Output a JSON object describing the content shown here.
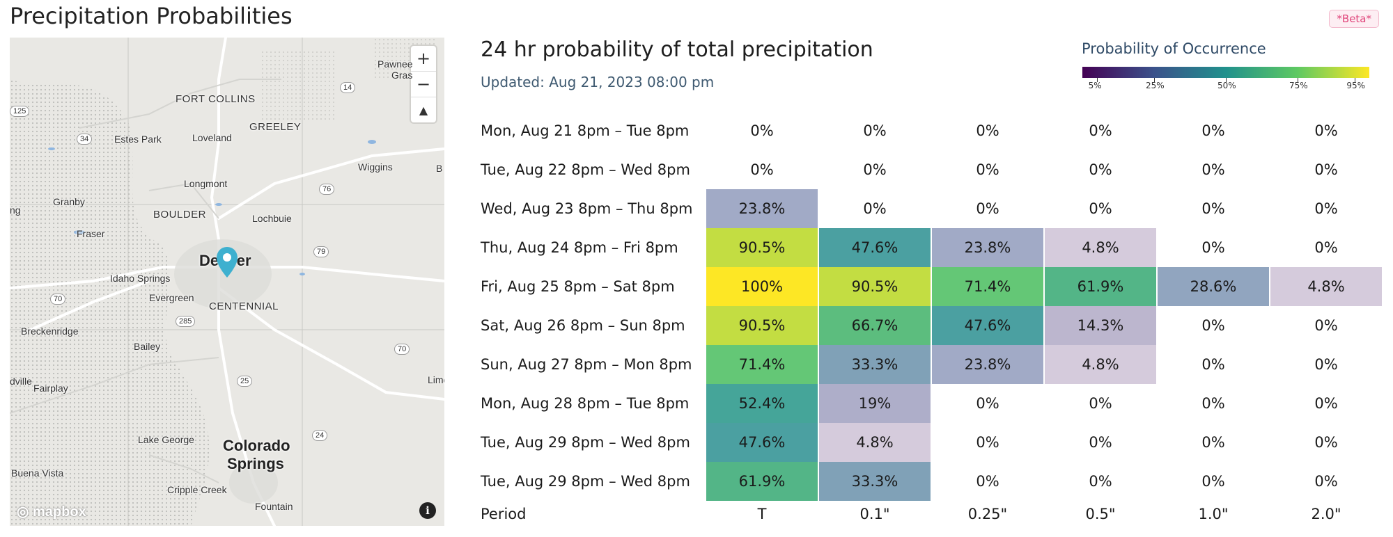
{
  "page": {
    "title": "Precipitation Probabilities",
    "beta": "*Beta*"
  },
  "map": {
    "labels": [
      {
        "text": "FORT COLLINS",
        "cls": "ml-mid"
      },
      {
        "text": "GREELEY",
        "cls": "ml-mid"
      },
      {
        "text": "Estes Park",
        "cls": "ml-small"
      },
      {
        "text": "Loveland",
        "cls": "ml-small"
      },
      {
        "text": "Wiggins",
        "cls": "ml-small"
      },
      {
        "text": "Longmont",
        "cls": "ml-small"
      },
      {
        "text": "Granby",
        "cls": "ml-small"
      },
      {
        "text": "BOULDER",
        "cls": "ml-mid"
      },
      {
        "text": "Lochbuie",
        "cls": "ml-small"
      },
      {
        "text": "Fraser",
        "cls": "ml-small"
      },
      {
        "text": "Denver",
        "cls": "ml-big"
      },
      {
        "text": "Idaho Springs",
        "cls": "ml-small"
      },
      {
        "text": "Evergreen",
        "cls": "ml-small"
      },
      {
        "text": "CENTENNIAL",
        "cls": "ml-mid"
      },
      {
        "text": "Breckenridge",
        "cls": "ml-small"
      },
      {
        "text": "Bailey",
        "cls": "ml-small"
      },
      {
        "text": "Fairplay",
        "cls": "ml-small"
      },
      {
        "text": "Lake George",
        "cls": "ml-small"
      },
      {
        "text": "Colorado",
        "cls": "ml-big"
      },
      {
        "text": "Springs",
        "cls": "ml-big"
      },
      {
        "text": "Buena Vista",
        "cls": "ml-small"
      },
      {
        "text": "Cripple Creek",
        "cls": "ml-small"
      },
      {
        "text": "Fountain",
        "cls": "ml-small"
      },
      {
        "text": "Pawnee",
        "cls": "ml-small"
      },
      {
        "text": "Gras",
        "cls": "ml-small"
      },
      {
        "text": "ng",
        "cls": "ml-small"
      },
      {
        "text": "dville",
        "cls": "ml-small"
      },
      {
        "text": "Lime",
        "cls": "ml-small"
      },
      {
        "text": "B",
        "cls": "ml-small"
      }
    ],
    "shields": [
      "125",
      "34",
      "14",
      "76",
      "79",
      "70",
      "285",
      "70",
      "25",
      "24"
    ],
    "zoom_in": "+",
    "zoom_out": "−",
    "compass": "▲",
    "attribution": "mapbox",
    "info": "i"
  },
  "chart": {
    "title": "24 hr probability of total precipitation",
    "updated": "Updated: Aug 21, 2023 08:00 pm",
    "legend": {
      "title": "Probability of Occurrence",
      "ticks": [
        "5%",
        "25%",
        "50%",
        "75%",
        "95%"
      ],
      "colors": [
        "#440154",
        "#3b528b",
        "#21918c",
        "#5ec962",
        "#fde725"
      ]
    }
  },
  "chart_data": {
    "type": "table",
    "columns": [
      "T",
      "0.1\"",
      "0.25\"",
      "0.5\"",
      "1.0\"",
      "2.0\""
    ],
    "column_header": "Period",
    "rows": [
      {
        "period": "Mon, Aug 21 8pm – Tue 8pm",
        "values": [
          "0%",
          "0%",
          "0%",
          "0%",
          "0%",
          "0%"
        ],
        "pct": [
          0,
          0,
          0,
          0,
          0,
          0
        ]
      },
      {
        "period": "Tue, Aug 22 8pm – Wed 8pm",
        "values": [
          "0%",
          "0%",
          "0%",
          "0%",
          "0%",
          "0%"
        ],
        "pct": [
          0,
          0,
          0,
          0,
          0,
          0
        ]
      },
      {
        "period": "Wed, Aug 23 8pm – Thu 8pm",
        "values": [
          "23.8%",
          "0%",
          "0%",
          "0%",
          "0%",
          "0%"
        ],
        "pct": [
          23.8,
          0,
          0,
          0,
          0,
          0
        ]
      },
      {
        "period": "Thu, Aug 24 8pm – Fri 8pm",
        "values": [
          "90.5%",
          "47.6%",
          "23.8%",
          "4.8%",
          "0%",
          "0%"
        ],
        "pct": [
          90.5,
          47.6,
          23.8,
          4.8,
          0,
          0
        ]
      },
      {
        "period": "Fri, Aug 25 8pm – Sat 8pm",
        "values": [
          "100%",
          "90.5%",
          "71.4%",
          "61.9%",
          "28.6%",
          "4.8%"
        ],
        "pct": [
          100,
          90.5,
          71.4,
          61.9,
          28.6,
          4.8
        ]
      },
      {
        "period": "Sat, Aug 26 8pm – Sun 8pm",
        "values": [
          "90.5%",
          "66.7%",
          "47.6%",
          "14.3%",
          "0%",
          "0%"
        ],
        "pct": [
          90.5,
          66.7,
          47.6,
          14.3,
          0,
          0
        ]
      },
      {
        "period": "Sun, Aug 27 8pm – Mon 8pm",
        "values": [
          "71.4%",
          "33.3%",
          "23.8%",
          "4.8%",
          "0%",
          "0%"
        ],
        "pct": [
          71.4,
          33.3,
          23.8,
          4.8,
          0,
          0
        ]
      },
      {
        "period": "Mon, Aug 28 8pm – Tue 8pm",
        "values": [
          "52.4%",
          "19%",
          "0%",
          "0%",
          "0%",
          "0%"
        ],
        "pct": [
          52.4,
          19,
          0,
          0,
          0,
          0
        ]
      },
      {
        "period": "Tue, Aug 29 8pm – Wed 8pm",
        "values": [
          "47.6%",
          "4.8%",
          "0%",
          "0%",
          "0%",
          "0%"
        ],
        "pct": [
          47.6,
          4.8,
          0,
          0,
          0,
          0
        ]
      },
      {
        "period": "Tue, Aug 29 8pm – Wed 8pm",
        "values": [
          "61.9%",
          "33.3%",
          "0%",
          "0%",
          "0%",
          "0%"
        ],
        "pct": [
          61.9,
          33.3,
          0,
          0,
          0,
          0
        ]
      }
    ]
  }
}
